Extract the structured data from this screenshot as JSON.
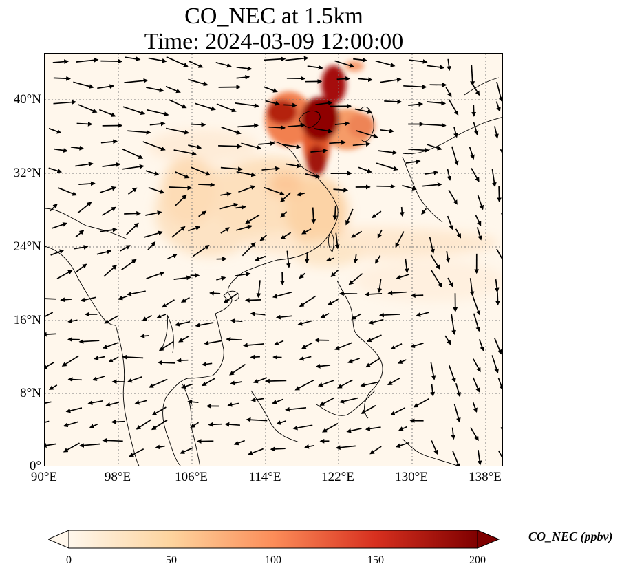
{
  "title_line1": "CO_NEC at 1.5km",
  "title_line2": "Time: 2024-03-09 12:00:00",
  "map": {
    "lon_range": [
      90,
      140
    ],
    "lat_range": [
      0,
      45
    ],
    "lat_ticks": [
      "40°N",
      "32°N",
      "24°N",
      "16°N",
      "8°N",
      "0°"
    ],
    "lon_ticks": [
      "90°E",
      "98°E",
      "106°E",
      "114°E",
      "122°E",
      "130°E",
      "138°E"
    ]
  },
  "colorbar": {
    "label": "CO_NEC (ppbv)",
    "ticks": [
      "0",
      "50",
      "100",
      "150",
      "200"
    ],
    "colors": [
      "#fff7ec",
      "#fdd49e",
      "#fc8d59",
      "#d7301f",
      "#7f0000"
    ]
  }
}
